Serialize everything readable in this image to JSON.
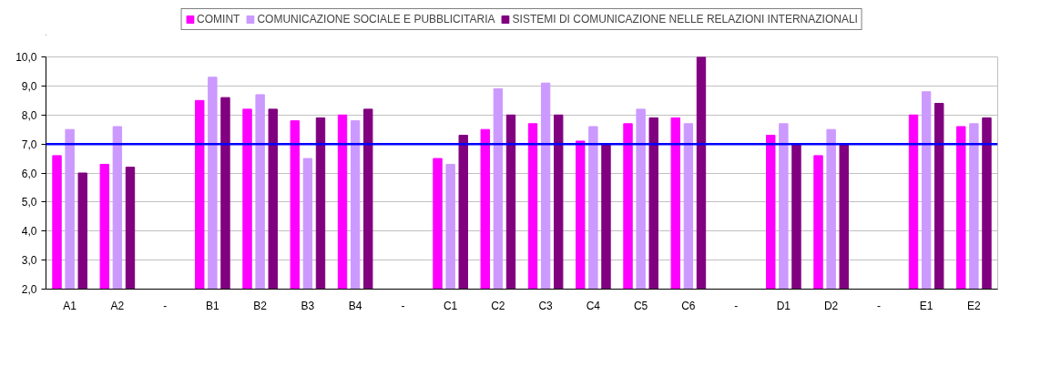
{
  "chart_data": {
    "type": "bar",
    "categories": [
      "A1",
      "A2",
      "-",
      "B1",
      "B2",
      "B3",
      "B4",
      "-",
      "C1",
      "C2",
      "C3",
      "C4",
      "C5",
      "C6",
      "-",
      "D1",
      "D2",
      "-",
      "E1",
      "E2"
    ],
    "series": [
      {
        "name": "COMINT",
        "color": "#ff00ff",
        "values": [
          6.6,
          6.3,
          null,
          8.5,
          8.2,
          7.8,
          8.0,
          null,
          6.5,
          7.5,
          7.7,
          7.1,
          7.7,
          7.9,
          null,
          7.3,
          6.6,
          null,
          8.0,
          7.6
        ]
      },
      {
        "name": "COMUNICAZIONE SOCIALE E PUBBLICITARIA",
        "color": "#cc99ff",
        "values": [
          7.5,
          7.6,
          null,
          9.3,
          8.7,
          6.5,
          7.8,
          null,
          6.3,
          8.9,
          9.1,
          7.6,
          8.2,
          7.7,
          null,
          7.7,
          7.5,
          null,
          8.8,
          7.7
        ]
      },
      {
        "name": "SISTEMI DI COMUNICAZIONE NELLE RELAZIONI INTERNAZIONALI",
        "color": "#800080",
        "values": [
          6.0,
          6.2,
          null,
          8.6,
          8.2,
          7.9,
          8.2,
          null,
          7.3,
          8.0,
          8.0,
          7.0,
          7.9,
          10.0,
          null,
          7.0,
          7.0,
          null,
          8.4,
          7.9
        ]
      }
    ],
    "ylim": [
      2,
      10
    ],
    "yticks": [
      {
        "value": 2,
        "label": "2,0"
      },
      {
        "value": 3,
        "label": "3,0"
      },
      {
        "value": 4,
        "label": "4,0"
      },
      {
        "value": 5,
        "label": "5,0"
      },
      {
        "value": 6,
        "label": "6,0"
      },
      {
        "value": 7,
        "label": "7,0"
      },
      {
        "value": 8,
        "label": "8,0"
      },
      {
        "value": 9,
        "label": "9,0"
      },
      {
        "value": 10,
        "label": "10,0"
      }
    ],
    "ref_lines": [
      {
        "axis": "y",
        "value": 7,
        "color": "#0000ff",
        "line_style": "solid"
      }
    ],
    "grid": "y",
    "legend": "top"
  }
}
